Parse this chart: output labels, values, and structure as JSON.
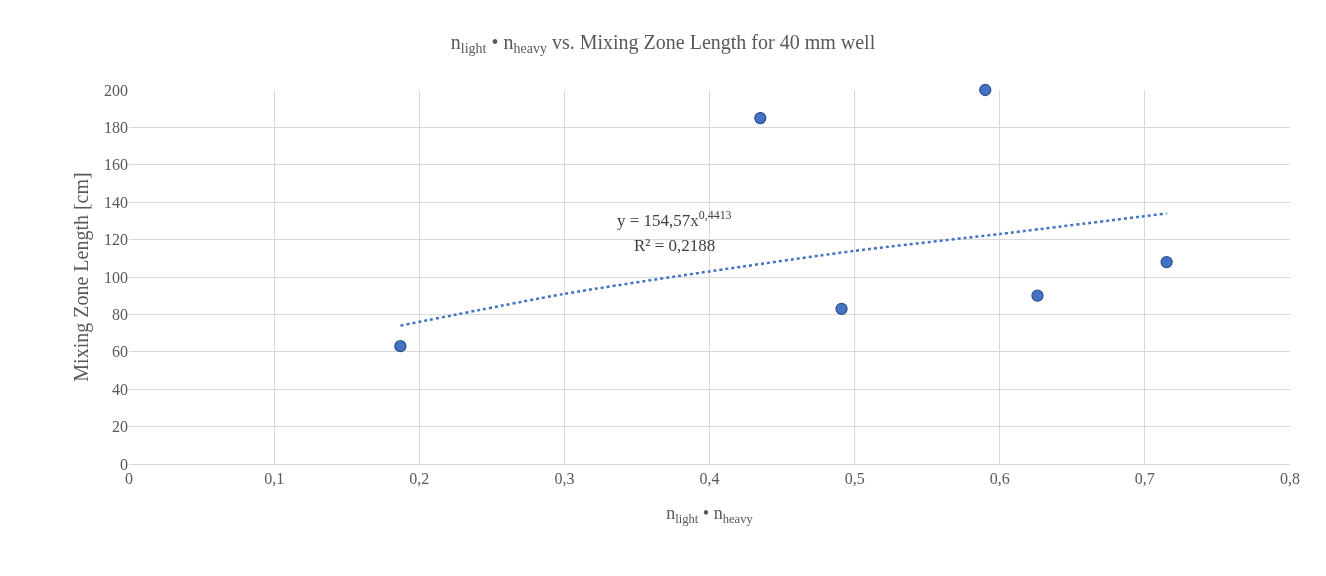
{
  "chart_data": {
    "type": "scatter",
    "title": "n$_{light}$ • n$_{heavy}$ vs. Mixing Zone Length for 40 mm well",
    "xlabel": "n$_{light}$ • n$_{heavy}$",
    "ylabel": "Mixing Zone Length [cm]",
    "xlim": [
      0,
      0.8
    ],
    "xticks": [
      0,
      {
        "value": 0.1,
        "label": "0,1"
      },
      {
        "value": 0.2,
        "label": "0,2"
      },
      {
        "value": 0.3,
        "label": "0,3"
      },
      {
        "value": 0.4,
        "label": "0,4"
      },
      {
        "value": 0.5,
        "label": "0,5"
      },
      {
        "value": 0.6,
        "label": "0,6"
      },
      {
        "value": 0.7,
        "label": "0,7"
      },
      {
        "value": 0.8,
        "label": "0,8"
      }
    ],
    "ylim": [
      0,
      200
    ],
    "yticks": [
      0,
      20,
      40,
      60,
      80,
      100,
      120,
      140,
      160,
      180,
      200
    ],
    "grid": true,
    "series": [
      {
        "color": "#4472c4",
        "marker": "circle",
        "x": [
          0.187,
          0.435,
          0.491,
          0.59,
          0.626,
          0.715
        ],
        "values": [
          63,
          185,
          83,
          200,
          90,
          108
        ]
      },
      {
        "type": "line",
        "color": "#4472c4",
        "marker": "none",
        "line_style": "dotted",
        "x": [
          0.187,
          0.3,
          0.4,
          0.5,
          0.6,
          0.715
        ],
        "values": [
          74,
          91,
          103,
          114,
          123,
          134
        ]
      }
    ],
    "annotations": [
      "y = 154,57x$^{0,4413}$",
      "R² = 0,2188"
    ]
  }
}
